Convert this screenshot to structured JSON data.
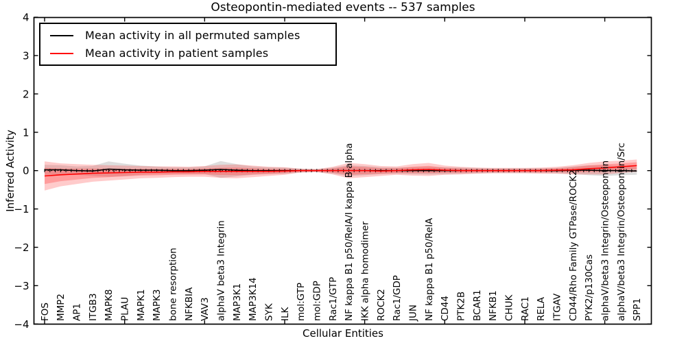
{
  "title": "Osteopontin-mediated events -- 537 samples",
  "legend": {
    "items": [
      {
        "label": "Mean activity in all permuted samples",
        "color": "#000000"
      },
      {
        "label": "Mean activity in patient samples",
        "color": "#ff0000"
      }
    ]
  },
  "chart_data": {
    "type": "line",
    "title": "Osteopontin-mediated events -- 537 samples",
    "xlabel": "Cellular Entities",
    "ylabel": "Inferred Activity",
    "ylim": [
      -4,
      4
    ],
    "yticks": [
      -4,
      -3,
      -2,
      -1,
      0,
      1,
      2,
      3,
      4
    ],
    "ytick_labels": [
      "−4",
      "−3",
      "−2",
      "−1",
      "0",
      "1",
      "2",
      "3",
      "4"
    ],
    "grid": false,
    "legend_position": "upper left",
    "zero_line": {
      "style": "dotted-with-tick-markers",
      "color": "#000000",
      "y": 0
    },
    "band_colors": {
      "permuted": "#bbbbbb",
      "patient": "#ff4444"
    },
    "categories": [
      "FOS",
      "MMP2",
      "AP1",
      "ITGB3",
      "MAPK8",
      "PLAU",
      "MAPK1",
      "MAPK3",
      "bone resorption",
      "NFKBIA",
      "VAV3",
      "alphaV beta3 Integrin",
      "MAP3K1",
      "MAP3K14",
      "SYK",
      "ILK",
      "mol:GTP",
      "mol:GDP",
      "Rac1/GTP",
      "NF kappa B1 p50/RelA/I kappa B alpha",
      "IKK alpha homodimer",
      "ROCK2",
      "Rac1/GDP",
      "JUN",
      "NF kappa B1 p50/RelA",
      "CD44",
      "PTK2B",
      "BCAR1",
      "NFKB1",
      "CHUK",
      "RAC1",
      "RELA",
      "ITGAV",
      "CD44/Rho Family GTPase/ROCK2",
      "PYK2/p130Cas",
      "alphaV/beta3 Integrin/Osteopontin",
      "alphaV/beta3 Integrin/Osteopontin/Src",
      "SPP1"
    ],
    "series": [
      {
        "name": "Mean activity in all permuted samples",
        "color": "#000000",
        "values": [
          0.02,
          0.02,
          0.0,
          -0.01,
          0.04,
          0.02,
          0.01,
          0.01,
          0.0,
          0.0,
          0.01,
          0.03,
          0.01,
          0.0,
          0.0,
          0.0,
          0.0,
          0.0,
          0.0,
          0.0,
          0.0,
          0.0,
          0.0,
          0.0,
          0.0,
          0.0,
          0.0,
          0.0,
          0.0,
          0.0,
          0.0,
          0.0,
          0.0,
          0.01,
          0.01,
          0.0,
          0.0,
          -0.01
        ],
        "std": [
          0.13,
          0.12,
          0.11,
          0.13,
          0.2,
          0.16,
          0.12,
          0.1,
          0.09,
          0.09,
          0.1,
          0.22,
          0.16,
          0.11,
          0.09,
          0.08,
          0.05,
          0.04,
          0.08,
          0.14,
          0.12,
          0.09,
          0.08,
          0.09,
          0.1,
          0.09,
          0.08,
          0.07,
          0.06,
          0.06,
          0.06,
          0.06,
          0.07,
          0.1,
          0.13,
          0.14,
          0.12,
          0.1
        ]
      },
      {
        "name": "Mean activity in patient samples",
        "color": "#ff0000",
        "values": [
          -0.14,
          -0.11,
          -0.09,
          -0.07,
          -0.06,
          -0.05,
          -0.04,
          -0.04,
          -0.03,
          -0.03,
          -0.02,
          -0.02,
          -0.02,
          -0.02,
          -0.02,
          -0.01,
          0.0,
          0.0,
          0.0,
          0.0,
          0.0,
          -0.01,
          0.0,
          0.02,
          0.03,
          0.01,
          0.0,
          0.0,
          0.0,
          0.0,
          0.0,
          0.0,
          0.01,
          0.02,
          0.05,
          0.07,
          0.1,
          0.13
        ],
        "std": [
          0.38,
          0.3,
          0.26,
          0.22,
          0.2,
          0.18,
          0.16,
          0.15,
          0.14,
          0.13,
          0.14,
          0.17,
          0.18,
          0.15,
          0.12,
          0.1,
          0.05,
          0.04,
          0.1,
          0.2,
          0.17,
          0.13,
          0.11,
          0.15,
          0.17,
          0.12,
          0.1,
          0.08,
          0.07,
          0.07,
          0.07,
          0.08,
          0.09,
          0.12,
          0.15,
          0.17,
          0.16,
          0.16
        ]
      }
    ]
  }
}
